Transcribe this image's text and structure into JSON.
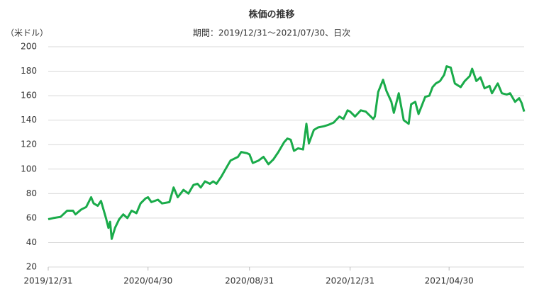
{
  "chart_data": {
    "type": "line",
    "title": "株価の推移",
    "subtitle": "期間：2019/12/31～2021/07/30、日次",
    "y_label": "（米ドル）",
    "x": [
      "2019/12/31",
      "2020/01/06",
      "2020/01/15",
      "2020/01/23",
      "2020/01/30",
      "2020/02/02",
      "2020/02/09",
      "2020/02/15",
      "2020/02/21",
      "2020/02/24",
      "2020/02/29",
      "2020/03/04",
      "2020/03/10",
      "2020/03/13",
      "2020/03/15",
      "2020/03/17",
      "2020/03/21",
      "2020/03/26",
      "2020/03/31",
      "2020/04/05",
      "2020/04/10",
      "2020/04/16",
      "2020/04/21",
      "2020/04/27",
      "2020/04/30",
      "2020/05/04",
      "2020/05/12",
      "2020/05/17",
      "2020/05/26",
      "2020/05/31",
      "2020/06/05",
      "2020/06/12",
      "2020/06/18",
      "2020/06/24",
      "2020/06/29",
      "2020/07/03",
      "2020/07/08",
      "2020/07/14",
      "2020/07/18",
      "2020/07/22",
      "2020/07/28",
      "2020/08/02",
      "2020/08/08",
      "2020/08/17",
      "2020/08/21",
      "2020/08/28",
      "2020/08/31",
      "2020/09/04",
      "2020/09/11",
      "2020/09/17",
      "2020/09/23",
      "2020/09/29",
      "2020/10/05",
      "2020/10/12",
      "2020/10/16",
      "2020/10/20",
      "2020/10/24",
      "2020/10/29",
      "2020/11/04",
      "2020/11/08",
      "2020/11/11",
      "2020/11/17",
      "2020/11/22",
      "2020/11/29",
      "2020/12/04",
      "2020/12/11",
      "2020/12/18",
      "2020/12/23",
      "2020/12/28",
      "2020/12/31",
      "2021/01/06",
      "2021/01/13",
      "2021/01/19",
      "2021/01/28",
      "2021/01/30",
      "2021/02/03",
      "2021/02/09",
      "2021/02/13",
      "2021/02/19",
      "2021/02/22",
      "2021/02/28",
      "2021/03/06",
      "2021/03/12",
      "2021/03/15",
      "2021/03/20",
      "2021/03/24",
      "2021/03/28",
      "2021/04/01",
      "2021/04/06",
      "2021/04/10",
      "2021/04/14",
      "2021/04/19",
      "2021/04/24",
      "2021/04/27",
      "2021/05/02",
      "2021/05/07",
      "2021/05/14",
      "2021/05/19",
      "2021/05/25",
      "2021/05/28",
      "2021/06/02",
      "2021/06/07",
      "2021/06/12",
      "2021/06/18",
      "2021/06/21",
      "2021/06/28",
      "2021/07/03",
      "2021/07/09",
      "2021/07/13",
      "2021/07/19",
      "2021/07/24",
      "2021/07/27",
      "2021/07/30"
    ],
    "series": [
      {
        "color": "#1aab4a",
        "values": [
          59,
          60,
          61,
          66,
          66,
          63,
          67,
          69,
          77,
          72,
          70,
          74,
          60,
          52,
          57,
          43,
          52,
          59,
          63,
          60,
          66,
          64,
          72,
          76,
          77,
          73,
          75,
          72,
          73,
          85,
          77,
          83,
          80,
          87,
          88,
          85,
          90,
          88,
          90,
          88,
          94,
          100,
          107,
          110,
          114,
          113,
          112,
          105,
          107,
          110,
          104,
          108,
          114,
          122,
          125,
          124,
          115,
          117,
          116,
          137,
          121,
          132,
          134,
          135,
          136,
          138,
          143,
          141,
          148,
          147,
          143,
          148,
          147,
          141,
          143,
          163,
          173,
          164,
          155,
          146,
          162,
          140,
          137,
          153,
          155,
          145,
          152,
          159,
          160,
          167,
          170,
          172,
          177,
          184,
          183,
          170,
          167,
          172,
          176,
          182,
          172,
          175,
          166,
          168,
          162,
          170,
          162,
          161,
          162,
          155,
          158,
          154,
          147
        ]
      }
    ],
    "xlim": [
      "2019/12/31",
      "2021/07/30"
    ],
    "xticks": [
      "2019/12/31",
      "2020/04/30",
      "2020/08/31",
      "2020/12/31",
      "2021/04/30"
    ],
    "ylim": [
      20,
      200
    ],
    "yticks": [
      20,
      40,
      60,
      80,
      100,
      120,
      140,
      160,
      180,
      200
    ],
    "grid": true
  }
}
